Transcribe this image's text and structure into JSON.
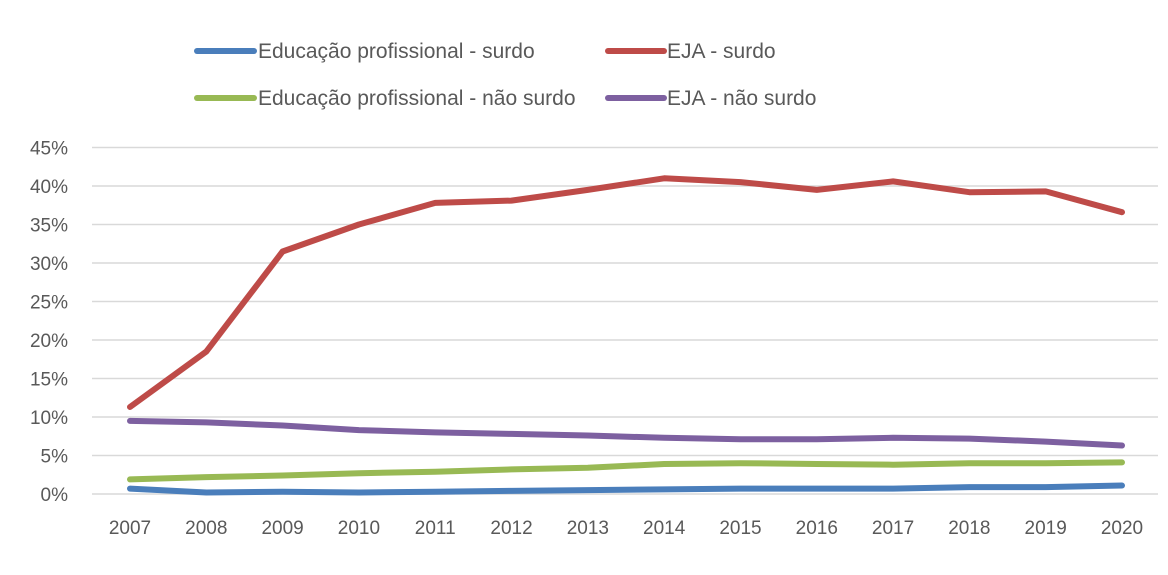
{
  "chart_data": {
    "type": "line",
    "title": "",
    "xlabel": "",
    "ylabel": "",
    "categories": [
      "2007",
      "2008",
      "2009",
      "2010",
      "2011",
      "2012",
      "2013",
      "2014",
      "2015",
      "2016",
      "2017",
      "2018",
      "2019",
      "2020"
    ],
    "ylim": [
      0,
      0.45
    ],
    "yticks": [
      0,
      0.05,
      0.1,
      0.15,
      0.2,
      0.25,
      0.3,
      0.35,
      0.4,
      0.45
    ],
    "ytick_labels": [
      "0%",
      "5%",
      "10%",
      "15%",
      "20%",
      "25%",
      "30%",
      "35%",
      "40%",
      "45%"
    ],
    "grid": true,
    "legend_position": "top",
    "series": [
      {
        "name": "Educação profissional - surdo",
        "color": "#4a7ebb",
        "values": [
          0.007,
          0.002,
          0.003,
          0.002,
          0.003,
          0.004,
          0.005,
          0.006,
          0.007,
          0.007,
          0.007,
          0.009,
          0.009,
          0.011
        ]
      },
      {
        "name": "EJA - surdo",
        "color": "#be4b48",
        "values": [
          0.113,
          0.185,
          0.315,
          0.35,
          0.378,
          0.381,
          0.395,
          0.41,
          0.405,
          0.395,
          0.406,
          0.392,
          0.393,
          0.366
        ]
      },
      {
        "name": "Educação profissional - não surdo",
        "color": "#98b954",
        "values": [
          0.019,
          0.022,
          0.024,
          0.027,
          0.029,
          0.032,
          0.034,
          0.039,
          0.04,
          0.039,
          0.038,
          0.04,
          0.04,
          0.041
        ]
      },
      {
        "name": "EJA - não surdo",
        "color": "#7d60a0",
        "values": [
          0.095,
          0.093,
          0.089,
          0.083,
          0.08,
          0.078,
          0.076,
          0.073,
          0.071,
          0.071,
          0.073,
          0.072,
          0.068,
          0.063
        ]
      }
    ]
  }
}
